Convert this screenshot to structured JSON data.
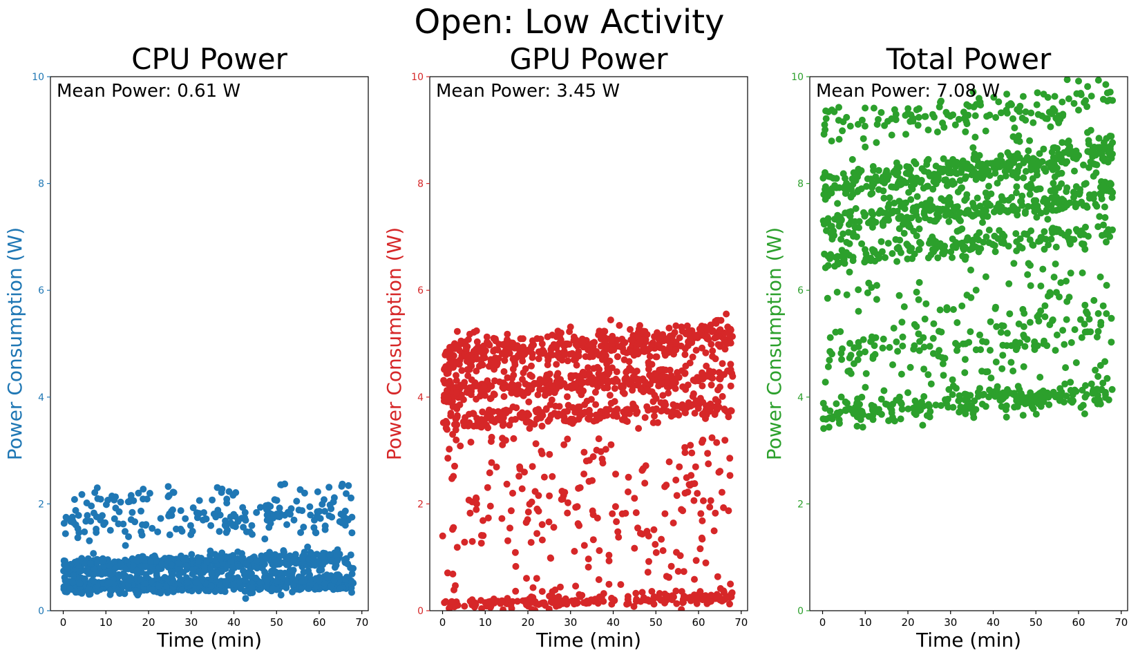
{
  "figure": {
    "suptitle": "Open: Low Activity"
  },
  "chart_data": [
    {
      "type": "scatter",
      "title": "CPU Power",
      "xlabel": "Time (min)",
      "ylabel": "Power Consumption (W)",
      "xlim": [
        -3,
        71.5
      ],
      "ylim": [
        0,
        10
      ],
      "x_ticks": [
        0,
        10,
        20,
        30,
        40,
        50,
        60,
        70
      ],
      "y_ticks": [
        0,
        2,
        4,
        6,
        8,
        10
      ],
      "color": "#1f77b4",
      "annotation": "Mean Power: 0.61 W",
      "mean_power_w": 0.61,
      "time_range_min": [
        0,
        68
      ],
      "bands": [
        {
          "start": 0.45,
          "end": 0.52,
          "spread": 0.07,
          "share": 0.45
        },
        {
          "start": 0.82,
          "end": 0.98,
          "spread": 0.08,
          "share": 0.33
        },
        {
          "start": 0.65,
          "end": 0.7,
          "spread": 0.08,
          "share": 0.06
        },
        {
          "start": 1.55,
          "end": 1.8,
          "spread": 0.17,
          "share": 0.12
        },
        {
          "start": 2.05,
          "end": 2.25,
          "spread": 0.13,
          "share": 0.04
        }
      ],
      "point_count": 1400,
      "seed": 11
    },
    {
      "type": "scatter",
      "title": "GPU Power",
      "xlabel": "Time (min)",
      "ylabel": "Power Consumption (W)",
      "xlim": [
        -3,
        71.5
      ],
      "ylim": [
        0,
        10
      ],
      "x_ticks": [
        0,
        10,
        20,
        30,
        40,
        50,
        60,
        70
      ],
      "y_ticks": [
        0,
        2,
        4,
        6,
        8,
        10
      ],
      "color": "#d62728",
      "annotation": "Mean Power: 3.45 W",
      "mean_power_w": 3.45,
      "time_range_min": [
        0,
        68
      ],
      "bands": [
        {
          "start": 4.75,
          "end": 5.1,
          "spread": 0.17,
          "share": 0.31
        },
        {
          "start": 4.1,
          "end": 4.4,
          "spread": 0.13,
          "share": 0.25
        },
        {
          "start": 3.55,
          "end": 3.8,
          "spread": 0.1,
          "share": 0.16
        },
        {
          "start": 0.12,
          "end": 0.25,
          "spread": 0.06,
          "share": 0.13
        },
        {
          "start": 0.0,
          "end": 3.2,
          "spread": 0.0,
          "share": 0.15,
          "uniform_range": [
            0.3,
            3.3
          ]
        }
      ],
      "point_count": 1500,
      "seed": 23
    },
    {
      "type": "scatter",
      "title": "Total Power",
      "xlabel": "Time (min)",
      "ylabel": "Power Consumption (W)",
      "xlim": [
        -3,
        71.5
      ],
      "ylim": [
        0,
        10
      ],
      "x_ticks": [
        0,
        10,
        20,
        30,
        40,
        50,
        60,
        70
      ],
      "y_ticks": [
        0,
        2,
        4,
        6,
        8,
        10
      ],
      "color": "#2ca02c",
      "annotation": "Mean Power: 7.08 W",
      "mean_power_w": 7.08,
      "time_range_min": [
        0,
        68
      ],
      "bands": [
        {
          "start": 7.9,
          "end": 8.6,
          "spread": 0.17,
          "share": 0.25
        },
        {
          "start": 7.2,
          "end": 7.85,
          "spread": 0.15,
          "share": 0.2
        },
        {
          "start": 6.6,
          "end": 7.1,
          "spread": 0.12,
          "share": 0.13
        },
        {
          "start": 9.0,
          "end": 9.6,
          "spread": 0.2,
          "share": 0.1
        },
        {
          "start": 3.7,
          "end": 4.1,
          "spread": 0.14,
          "share": 0.17
        },
        {
          "start": 4.8,
          "end": 5.3,
          "spread": 0.3,
          "share": 0.07
        },
        {
          "start": 0.0,
          "end": 0.0,
          "spread": 0.0,
          "share": 0.08,
          "uniform_range": [
            4.3,
            6.6
          ]
        }
      ],
      "point_count": 1500,
      "seed": 37
    }
  ]
}
